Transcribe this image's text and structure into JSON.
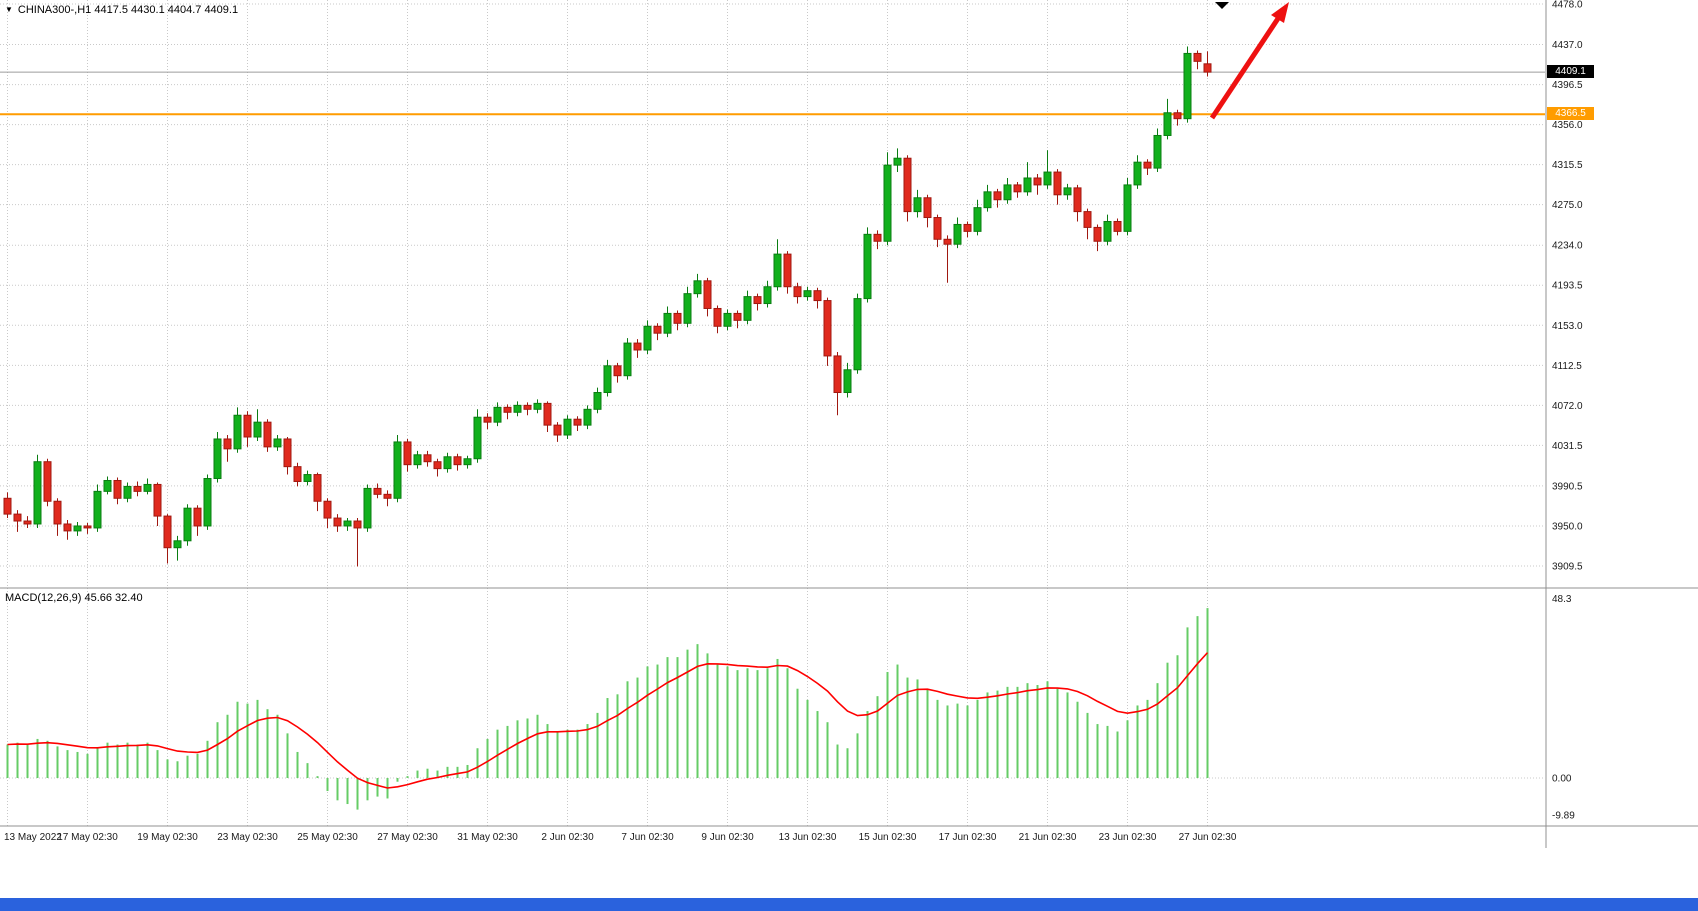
{
  "header": {
    "symbol_label": "CHINA300-,H1 4417.5 4430.1 4404.7 4409.1"
  },
  "icons": {
    "symbol_dropdown": "▼"
  },
  "chart_data": {
    "type": "candlestick",
    "title": "CHINA300-,H1",
    "xlabel": "",
    "ylabel": "",
    "current_price": 4409.1,
    "current_price_text": "4409.1",
    "hline": {
      "price": 4366.5,
      "price_text": "4366.5",
      "color": "#ff9c00"
    },
    "price_axis": {
      "labels": [
        "4478.0",
        "4437.0",
        "4396.5",
        "4356.0",
        "4315.5",
        "4275.0",
        "4234.0",
        "4193.5",
        "4153.0",
        "4112.5",
        "4072.0",
        "4031.5",
        "3990.5",
        "3950.0",
        "3909.5"
      ],
      "values": [
        4478.0,
        4437.0,
        4396.5,
        4356.0,
        4315.5,
        4275.0,
        4234.0,
        4193.5,
        4153.0,
        4112.5,
        4072.0,
        4031.5,
        3990.5,
        3950.0,
        3909.5
      ]
    },
    "time_axis": {
      "labels": [
        "13 May 2022",
        "17 May 02:30",
        "19 May 02:30",
        "23 May 02:30",
        "25 May 02:30",
        "27 May 02:30",
        "31 May 02:30",
        "2 Jun 02:30",
        "7 Jun 02:30",
        "9 Jun 02:30",
        "13 Jun 02:30",
        "15 Jun 02:30",
        "17 Jun 02:30",
        "21 Jun 02:30",
        "23 Jun 02:30",
        "27 Jun 02:30"
      ],
      "indices": [
        0,
        8,
        16,
        24,
        32,
        40,
        48,
        56,
        64,
        72,
        80,
        88,
        96,
        104,
        112,
        120
      ]
    },
    "ohlc": [
      [
        3978,
        3984,
        3958,
        3962
      ],
      [
        3962,
        3966,
        3944,
        3955
      ],
      [
        3955,
        3960,
        3948,
        3952
      ],
      [
        3952,
        4022,
        3948,
        4015
      ],
      [
        4015,
        4018,
        3970,
        3975
      ],
      [
        3975,
        3978,
        3940,
        3952
      ],
      [
        3952,
        3956,
        3936,
        3945
      ],
      [
        3945,
        3954,
        3940,
        3950
      ],
      [
        3950,
        3953,
        3942,
        3948
      ],
      [
        3948,
        3992,
        3944,
        3985
      ],
      [
        3985,
        4000,
        3982,
        3996
      ],
      [
        3996,
        3999,
        3972,
        3978
      ],
      [
        3978,
        3994,
        3974,
        3990
      ],
      [
        3990,
        3995,
        3980,
        3985
      ],
      [
        3985,
        3998,
        3982,
        3992
      ],
      [
        3992,
        3994,
        3950,
        3960
      ],
      [
        3960,
        3962,
        3912,
        3928
      ],
      [
        3928,
        3940,
        3915,
        3935
      ],
      [
        3935,
        3972,
        3930,
        3968
      ],
      [
        3968,
        3971,
        3940,
        3950
      ],
      [
        3950,
        4002,
        3946,
        3998
      ],
      [
        3998,
        4045,
        3994,
        4038
      ],
      [
        4038,
        4042,
        4015,
        4028
      ],
      [
        4028,
        4070,
        4024,
        4062
      ],
      [
        4062,
        4066,
        4030,
        4040
      ],
      [
        4040,
        4068,
        4036,
        4055
      ],
      [
        4055,
        4058,
        4025,
        4030
      ],
      [
        4030,
        4042,
        4026,
        4038
      ],
      [
        4038,
        4040,
        4002,
        4010
      ],
      [
        4010,
        4014,
        3990,
        3995
      ],
      [
        3995,
        4006,
        3991,
        4002
      ],
      [
        4002,
        4004,
        3965,
        3975
      ],
      [
        3975,
        3978,
        3948,
        3958
      ],
      [
        3958,
        3962,
        3944,
        3950
      ],
      [
        3950,
        3958,
        3945,
        3955
      ],
      [
        3955,
        3958,
        3909,
        3948
      ],
      [
        3948,
        3992,
        3944,
        3988
      ],
      [
        3988,
        3993,
        3978,
        3982
      ],
      [
        3982,
        3986,
        3970,
        3978
      ],
      [
        3978,
        4042,
        3974,
        4035
      ],
      [
        4035,
        4038,
        4005,
        4012
      ],
      [
        4012,
        4026,
        4008,
        4022
      ],
      [
        4022,
        4026,
        4010,
        4015
      ],
      [
        4015,
        4018,
        4000,
        4008
      ],
      [
        4008,
        4024,
        4004,
        4020
      ],
      [
        4020,
        4023,
        4006,
        4012
      ],
      [
        4012,
        4021,
        4008,
        4018
      ],
      [
        4018,
        4068,
        4014,
        4060
      ],
      [
        4060,
        4064,
        4048,
        4055
      ],
      [
        4055,
        4075,
        4051,
        4070
      ],
      [
        4070,
        4073,
        4058,
        4065
      ],
      [
        4065,
        4076,
        4061,
        4072
      ],
      [
        4072,
        4075,
        4062,
        4068
      ],
      [
        4068,
        4078,
        4064,
        4074
      ],
      [
        4074,
        4076,
        4045,
        4052
      ],
      [
        4052,
        4055,
        4035,
        4042
      ],
      [
        4042,
        4062,
        4038,
        4058
      ],
      [
        4058,
        4061,
        4046,
        4052
      ],
      [
        4052,
        4072,
        4048,
        4068
      ],
      [
        4068,
        4090,
        4064,
        4085
      ],
      [
        4085,
        4118,
        4081,
        4112
      ],
      [
        4112,
        4115,
        4095,
        4102
      ],
      [
        4102,
        4140,
        4098,
        4135
      ],
      [
        4135,
        4139,
        4120,
        4128
      ],
      [
        4128,
        4158,
        4124,
        4152
      ],
      [
        4152,
        4155,
        4138,
        4145
      ],
      [
        4145,
        4172,
        4141,
        4165
      ],
      [
        4165,
        4168,
        4148,
        4155
      ],
      [
        4155,
        4192,
        4151,
        4185
      ],
      [
        4185,
        4205,
        4181,
        4198
      ],
      [
        4198,
        4201,
        4162,
        4170
      ],
      [
        4170,
        4173,
        4145,
        4152
      ],
      [
        4152,
        4169,
        4148,
        4165
      ],
      [
        4165,
        4168,
        4150,
        4158
      ],
      [
        4158,
        4188,
        4154,
        4182
      ],
      [
        4182,
        4185,
        4168,
        4175
      ],
      [
        4175,
        4198,
        4171,
        4192
      ],
      [
        4192,
        4240,
        4188,
        4225
      ],
      [
        4225,
        4228,
        4185,
        4192
      ],
      [
        4192,
        4196,
        4175,
        4182
      ],
      [
        4182,
        4192,
        4178,
        4188
      ],
      [
        4188,
        4191,
        4170,
        4178
      ],
      [
        4178,
        4181,
        4112,
        4122
      ],
      [
        4122,
        4126,
        4062,
        4085
      ],
      [
        4085,
        4115,
        4080,
        4108
      ],
      [
        4108,
        4185,
        4104,
        4180
      ],
      [
        4180,
        4252,
        4176,
        4245
      ],
      [
        4245,
        4249,
        4230,
        4238
      ],
      [
        4238,
        4328,
        4234,
        4315
      ],
      [
        4315,
        4332,
        4308,
        4322
      ],
      [
        4322,
        4325,
        4258,
        4268
      ],
      [
        4268,
        4290,
        4262,
        4282
      ],
      [
        4282,
        4285,
        4252,
        4262
      ],
      [
        4262,
        4265,
        4232,
        4240
      ],
      [
        4240,
        4244,
        4196,
        4235
      ],
      [
        4235,
        4262,
        4231,
        4255
      ],
      [
        4255,
        4258,
        4242,
        4248
      ],
      [
        4248,
        4280,
        4244,
        4272
      ],
      [
        4272,
        4295,
        4268,
        4288
      ],
      [
        4288,
        4291,
        4272,
        4280
      ],
      [
        4280,
        4302,
        4276,
        4295
      ],
      [
        4295,
        4298,
        4282,
        4288
      ],
      [
        4288,
        4318,
        4284,
        4302
      ],
      [
        4302,
        4306,
        4285,
        4295
      ],
      [
        4295,
        4330,
        4291,
        4308
      ],
      [
        4308,
        4311,
        4275,
        4285
      ],
      [
        4285,
        4296,
        4280,
        4292
      ],
      [
        4292,
        4295,
        4258,
        4268
      ],
      [
        4268,
        4271,
        4240,
        4252
      ],
      [
        4252,
        4255,
        4228,
        4238
      ],
      [
        4238,
        4265,
        4234,
        4258
      ],
      [
        4258,
        4261,
        4244,
        4248
      ],
      [
        4248,
        4302,
        4244,
        4295
      ],
      [
        4295,
        4325,
        4291,
        4318
      ],
      [
        4318,
        4321,
        4305,
        4312
      ],
      [
        4312,
        4352,
        4308,
        4345
      ],
      [
        4345,
        4382,
        4341,
        4368
      ],
      [
        4368,
        4371,
        4355,
        4362
      ],
      [
        4362,
        4435,
        4358,
        4428
      ],
      [
        4428,
        4431,
        4412,
        4420
      ],
      [
        4417.5,
        4430.1,
        4404.7,
        4409.1
      ]
    ],
    "macd": {
      "label": "MACD(12,26,9) 45.66 32.40",
      "macd_value": 45.66,
      "signal_value": 32.4,
      "signal_period": 9,
      "axis": {
        "labels": [
          "48.3",
          "0.00",
          "-9.89"
        ],
        "values": [
          48.3,
          0,
          -9.89
        ]
      },
      "values": [
        9,
        9.5,
        9,
        10.5,
        10,
        8.5,
        7.5,
        7,
        6.5,
        8,
        9.5,
        9,
        9.5,
        9,
        9.5,
        7.5,
        5,
        4.5,
        6,
        6.5,
        10,
        15,
        17,
        20.5,
        20,
        21,
        18.5,
        17,
        12,
        7,
        4,
        0.5,
        -3.5,
        -6,
        -7,
        -8.5,
        -6,
        -5,
        -5.5,
        -1,
        0.5,
        2,
        2.5,
        2,
        3,
        3,
        3.5,
        8,
        10.5,
        13,
        14,
        15.5,
        16,
        17,
        14.5,
        12.5,
        13,
        13,
        14.5,
        17.5,
        21.5,
        22.5,
        26,
        27,
        30,
        30.5,
        32.5,
        32.5,
        34.5,
        36,
        33.5,
        30.5,
        30,
        29,
        29.5,
        29,
        29.5,
        32,
        29.5,
        24,
        21,
        18,
        15,
        9,
        8,
        12,
        18,
        22,
        28.5,
        30.5,
        27,
        26.5,
        24,
        21,
        19.5,
        20,
        19.5,
        21,
        23,
        23.5,
        24.5,
        24.5,
        25.5,
        25,
        26,
        24,
        23,
        20.5,
        17.5,
        14.5,
        14,
        12.5,
        15.5,
        19.5,
        21,
        25.5,
        31,
        33,
        40.5,
        43.5,
        45.66
      ]
    },
    "colors": {
      "up_fill": "#11b01c",
      "up_stroke": "#0a7d12",
      "down_fill": "#e02a1e",
      "down_stroke": "#a01810",
      "hist": "#66cc66",
      "signal": "#ff0000",
      "grid": "#c9c9c9",
      "separator": "#909090",
      "current_line": "#9c9c9c",
      "arrow": "#ee1111",
      "axis_text": "#1a1a1a"
    }
  }
}
